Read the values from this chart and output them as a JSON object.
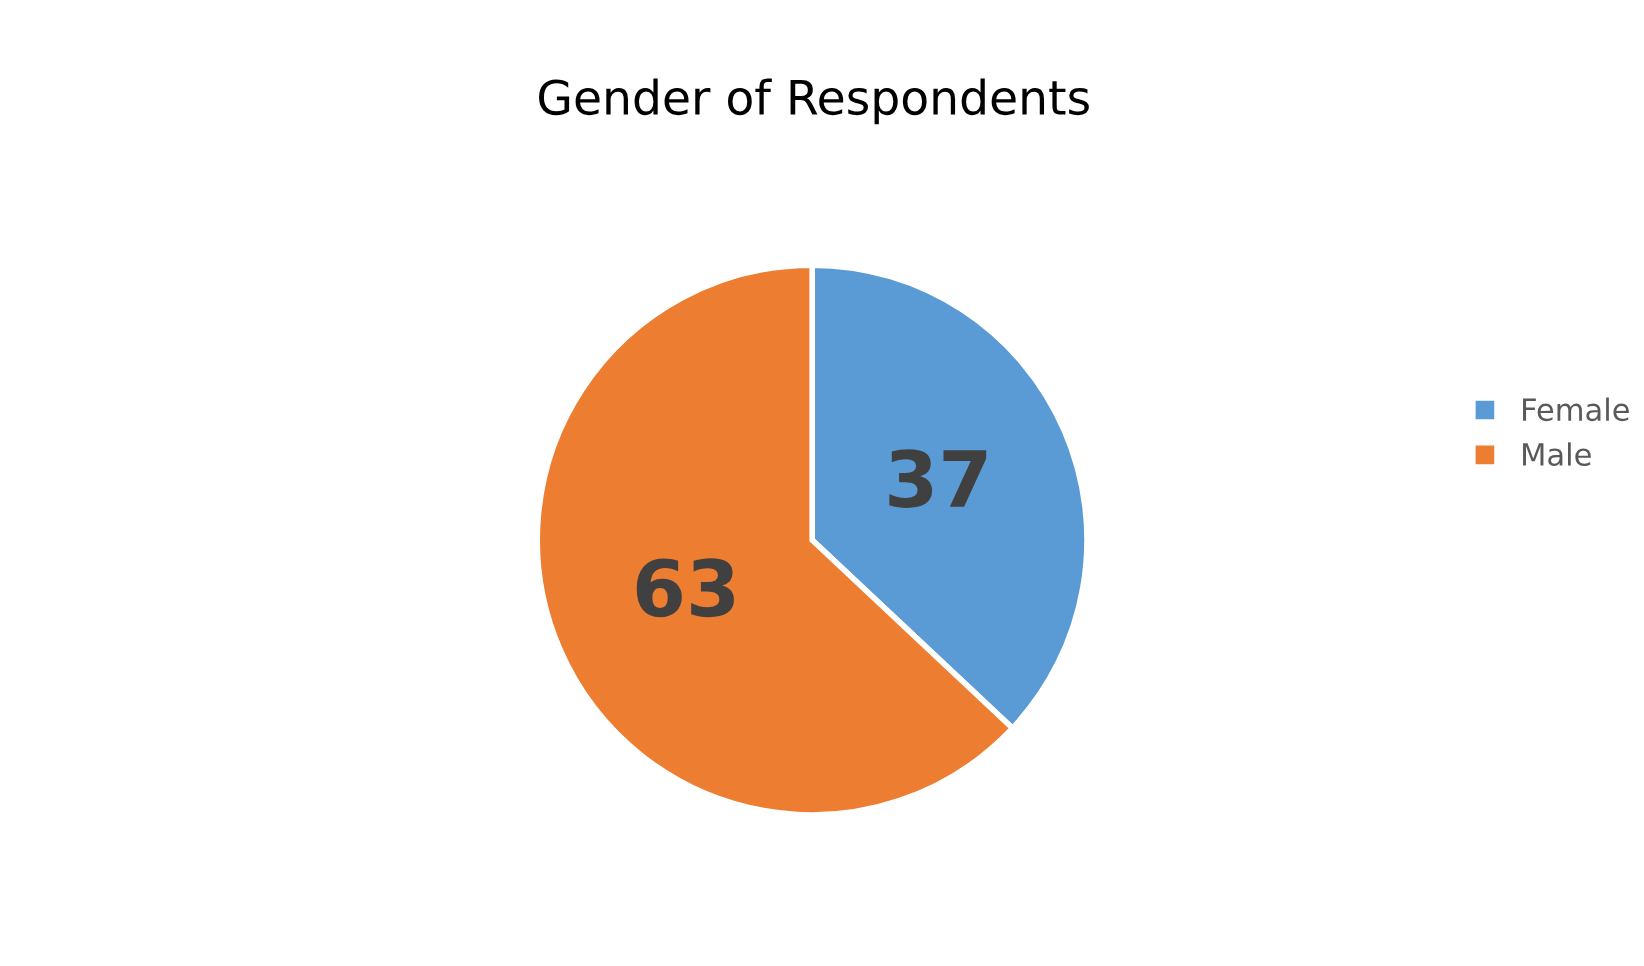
{
  "chart_data": {
    "type": "pie",
    "title": "Gender of Respondents",
    "categories": [
      "Female",
      "Male"
    ],
    "values": [
      37,
      63
    ],
    "colors": [
      "#5b9bd5",
      "#ed7d31"
    ],
    "data_labels": true,
    "legend": "right"
  }
}
